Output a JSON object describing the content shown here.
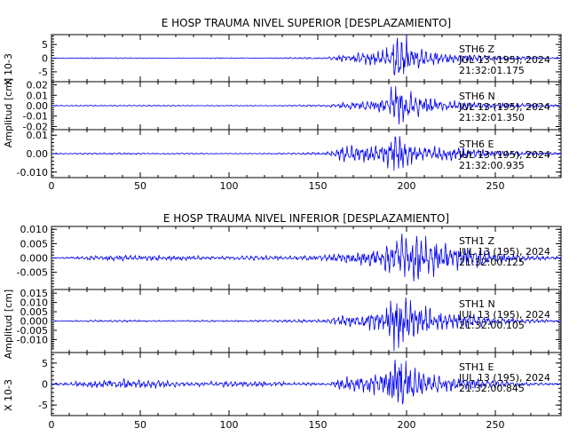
{
  "figure": {
    "panels": [
      {
        "title": "E HOSP TRAUMA NIVEL SUPERIOR [DESPLAZAMIENTO]",
        "ylabel_top": "X 10-3",
        "ylabel_mid": "Amplitud [cm]",
        "xlabel": "",
        "xlim": [
          0,
          287
        ],
        "x_ticks": [
          0,
          50,
          100,
          150,
          200,
          250
        ],
        "show_x_ticklabels": true,
        "traces": [
          {
            "info": [
              "STH6   Z",
              "JUL 13 (195), 2024",
              "21:32:01.175"
            ],
            "ylim": [
              -8.6,
              8.6
            ],
            "y_ticks": [
              -5,
              0,
              5
            ],
            "y_ticklabels": [
              "-5",
              "0",
              "5"
            ]
          },
          {
            "info": [
              "STH6   N",
              "JUL 13 (195), 2024",
              "21:32:01.350"
            ],
            "ylim": [
              -0.023,
              0.023
            ],
            "y_ticks": [
              -0.02,
              -0.01,
              0.0,
              0.01,
              0.02
            ],
            "y_ticklabels": [
              "-0.02",
              "-0.01",
              "0.00",
              "0.01",
              "0.02"
            ]
          },
          {
            "info": [
              "STH6   E",
              "JUL 13 (195), 2024",
              "21:32:00.935"
            ],
            "ylim": [
              -0.013,
              0.013
            ],
            "y_ticks": [
              -0.01,
              0.0,
              0.01
            ],
            "y_ticklabels": [
              "-0.010",
              "0.00",
              "0.01"
            ]
          }
        ]
      },
      {
        "title": "E HOSP TRAUMA NIVEL INFERIOR [DESPLAZAMIENTO]",
        "ylabel_top": "",
        "ylabel_mid": "Amplitud [cm]",
        "ylabel_bottom": "X 10-3",
        "xlabel": "",
        "xlim": [
          0,
          287
        ],
        "x_ticks": [
          0,
          50,
          100,
          150,
          200,
          250
        ],
        "show_x_ticklabels": true,
        "traces": [
          {
            "info": [
              "STH1   Z",
              "JUL 13 (195), 2024",
              "21:32:00.125"
            ],
            "ylim": [
              -0.011,
              0.011
            ],
            "y_ticks": [
              -0.005,
              0.0,
              0.005,
              0.01
            ],
            "y_ticklabels": [
              "-0.005",
              "0.000",
              "0.005",
              "0.010"
            ]
          },
          {
            "info": [
              "STH1   N",
              "JUL 13 (195), 2024",
              "21:32:00.105"
            ],
            "ylim": [
              -0.017,
              0.017
            ],
            "y_ticks": [
              -0.01,
              -0.005,
              0.0,
              0.005,
              0.01,
              0.015
            ],
            "y_ticklabels": [
              "-0.010",
              "-0.005",
              "0.000",
              "0.005",
              "0.010",
              "0.015"
            ]
          },
          {
            "info": [
              "STH1   E",
              "JUL 13 (195), 2024",
              "21:32:00.845"
            ],
            "ylim": [
              -7.5,
              7.5
            ],
            "y_ticks": [
              -5,
              0,
              5
            ],
            "y_ticklabels": [
              "-5",
              "0",
              "5"
            ]
          }
        ]
      }
    ]
  },
  "chart_data": [
    {
      "type": "line",
      "title": "E HOSP TRAUMA NIVEL SUPERIOR [DESPLAZAMIENTO]",
      "xlabel": "",
      "ylabel": "Amplitud [cm]",
      "xlim": [
        0,
        287
      ],
      "x": [
        0,
        20,
        40,
        60,
        80,
        100,
        120,
        140,
        155,
        160,
        165,
        170,
        175,
        180,
        185,
        188,
        190,
        192,
        195,
        198,
        200,
        203,
        205,
        210,
        215,
        220,
        230,
        240,
        250,
        260,
        270,
        287
      ],
      "series": [
        {
          "name": "STH6   Z",
          "unit_scale": "X 10-3",
          "values": [
            0.1,
            -0.2,
            0.2,
            0.1,
            -0.1,
            0.2,
            0.1,
            0.3,
            0.4,
            0.9,
            1.6,
            -1.5,
            2.0,
            2.2,
            -2.6,
            3.5,
            -4.5,
            7.5,
            -8.0,
            8.6,
            -7.0,
            5.0,
            -4.0,
            3.2,
            -2.6,
            2.0,
            1.5,
            -1.2,
            0.9,
            0.7,
            -0.5,
            0.3
          ]
        },
        {
          "name": "STH6   N",
          "values": [
            0.0004,
            -0.0006,
            0.0005,
            0.0007,
            -0.0004,
            0.0006,
            0.0003,
            0.0008,
            0.001,
            0.002,
            0.003,
            -0.003,
            0.004,
            0.005,
            -0.006,
            0.007,
            -0.012,
            0.022,
            -0.019,
            0.016,
            -0.014,
            0.012,
            -0.01,
            0.008,
            -0.007,
            0.005,
            0.004,
            -0.003,
            0.003,
            0.002,
            -0.002,
            0.001
          ]
        },
        {
          "name": "STH6   E",
          "values": [
            0.0003,
            -0.0004,
            0.0005,
            -0.0003,
            0.0004,
            -0.0002,
            0.0003,
            0.0006,
            0.0009,
            0.0025,
            0.004,
            -0.004,
            0.004,
            0.005,
            -0.005,
            0.006,
            -0.009,
            0.012,
            -0.011,
            0.01,
            -0.009,
            0.007,
            -0.006,
            0.005,
            -0.004,
            0.004,
            0.003,
            -0.002,
            0.002,
            0.0015,
            -0.001,
            0.0006
          ]
        }
      ]
    },
    {
      "type": "line",
      "title": "E HOSP TRAUMA NIVEL INFERIOR [DESPLAZAMIENTO]",
      "xlabel": "",
      "ylabel": "Amplitud [cm]",
      "xlim": [
        0,
        287
      ],
      "x": [
        0,
        20,
        40,
        60,
        80,
        100,
        120,
        140,
        155,
        160,
        165,
        170,
        175,
        180,
        185,
        188,
        190,
        192,
        195,
        198,
        200,
        203,
        205,
        210,
        215,
        220,
        230,
        240,
        250,
        260,
        270,
        287
      ],
      "series": [
        {
          "name": "STH1   Z",
          "values": [
            0.0,
            -0.0008,
            0.001,
            -0.0009,
            0.0007,
            -0.0006,
            0.0008,
            0.0008,
            0.001,
            0.0015,
            0.002,
            -0.002,
            0.0025,
            0.003,
            -0.004,
            0.005,
            -0.006,
            0.007,
            -0.007,
            0.008,
            -0.008,
            0.01,
            -0.008,
            0.007,
            -0.006,
            0.005,
            0.004,
            -0.003,
            0.002,
            0.0015,
            -0.001,
            0.0005
          ]
        },
        {
          "name": "STH1   N",
          "values": [
            0.0,
            -0.0005,
            0.0006,
            -0.0004,
            0.0005,
            0.0004,
            -0.0005,
            0.0008,
            0.001,
            0.002,
            0.003,
            -0.003,
            0.004,
            0.005,
            -0.006,
            0.006,
            -0.008,
            0.016,
            -0.015,
            0.012,
            -0.011,
            0.01,
            -0.009,
            0.007,
            -0.006,
            0.005,
            0.004,
            -0.003,
            0.002,
            0.0015,
            -0.001,
            0.0005
          ]
        },
        {
          "name": "STH1   E",
          "unit_scale": "X 10-3",
          "values": [
            0.2,
            -0.8,
            -1.2,
            -0.9,
            -0.5,
            -0.7,
            -0.6,
            -0.4,
            0.3,
            0.9,
            1.5,
            -1.6,
            2.0,
            2.4,
            -3.0,
            3.5,
            -4.8,
            7.0,
            -7.2,
            6.0,
            -5.5,
            4.5,
            -3.8,
            3.0,
            -2.5,
            2.0,
            1.5,
            -1.2,
            0.9,
            0.6,
            -0.4,
            0.2
          ]
        }
      ]
    }
  ]
}
